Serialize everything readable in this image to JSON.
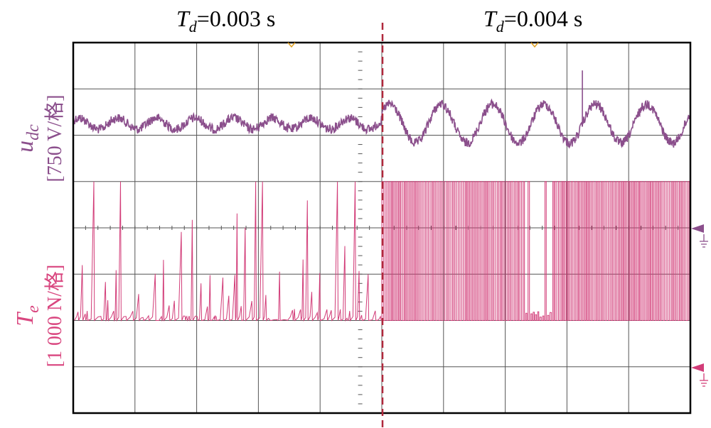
{
  "chart_data": {
    "type": "line",
    "title_left": {
      "sym": "T",
      "sub": "d",
      "rest": "=0.003 s"
    },
    "title_right": {
      "sym": "T",
      "sub": "d",
      "rest": "=0.004 s"
    },
    "ylabel_top": {
      "sym": "u",
      "sub": "dc",
      "unit": "[750 V/格]"
    },
    "ylabel_bottom": {
      "sym": "T",
      "sub": "e",
      "unit": "[1 000 N/格]"
    },
    "divisions": {
      "x": 10,
      "y": 8
    },
    "split_at_division": 5,
    "grid": true,
    "series": [
      {
        "color": "#8B4F8C",
        "segments": [
          {
            "from_div": 0,
            "to_div": 5,
            "baseline_div": 1.75,
            "amplitude_div": 0.12,
            "cycles": 8,
            "noise_div": 0.1
          },
          {
            "from_div": 5,
            "to_div": 10,
            "baseline_div": 1.75,
            "amplitude_div": 0.42,
            "cycles": 6,
            "noise_div": 0.1
          }
        ],
        "spike_at_div": 8.25
      },
      {
        "color": "#D23C78",
        "baseline_div": 6.0,
        "max_div": 3.0,
        "segments": [
          {
            "from_div": 0,
            "to_div": 5,
            "pattern": "sparse_spikes"
          },
          {
            "from_div": 5,
            "to_div": 10,
            "pattern": "dense_square"
          }
        ]
      }
    ],
    "colors": {
      "top_label": "#8B4F8C",
      "bottom_label": "#D9467F",
      "split_line": "#B0283C",
      "grid": "#555555",
      "frame": "#000000",
      "trigger_marker": "#E0A020"
    }
  }
}
